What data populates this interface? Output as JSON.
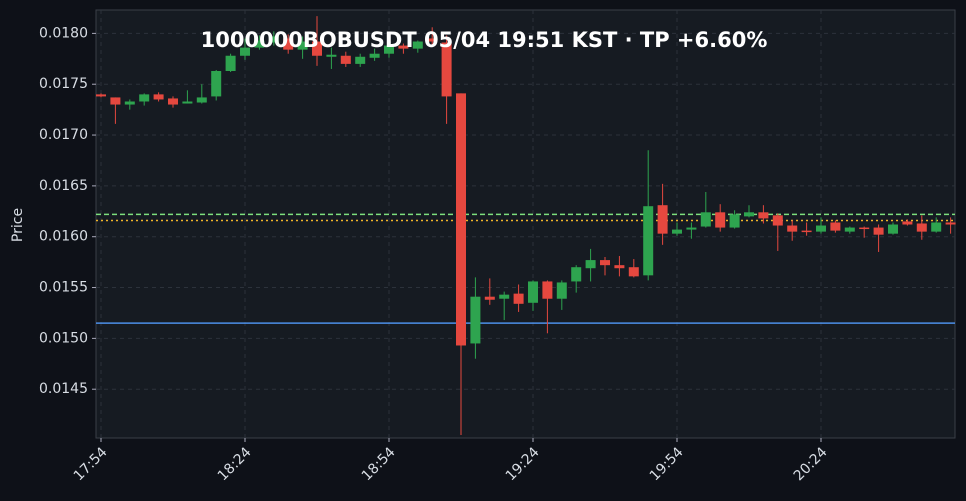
{
  "chart_data": {
    "type": "candlestick",
    "title": "1000000BOBUSDT  05/04 19:51 KST  ·  TP +6.60%",
    "y_label": "Price",
    "categories": [
      "17:54",
      null,
      null,
      null,
      null,
      null,
      null,
      null,
      null,
      null,
      "18:24",
      null,
      null,
      null,
      null,
      null,
      null,
      null,
      null,
      null,
      "18:54",
      null,
      null,
      null,
      null,
      null,
      null,
      null,
      null,
      null,
      "19:24",
      null,
      null,
      null,
      null,
      null,
      null,
      null,
      null,
      null,
      "19:54",
      null,
      null,
      null,
      null,
      null,
      null,
      null,
      null,
      null,
      "20:24",
      null,
      null,
      null,
      null,
      null,
      null,
      null,
      null,
      null
    ],
    "open": [
      0.0174,
      0.01737,
      0.0173,
      0.01733,
      0.0174,
      0.01736,
      0.01731,
      0.01732,
      0.01738,
      0.01763,
      0.01778,
      0.01786,
      0.01791,
      0.01795,
      0.01784,
      0.01792,
      0.01777,
      0.01778,
      0.0177,
      0.01776,
      0.0178,
      0.01788,
      0.01785,
      0.01795,
      0.01791,
      0.01741,
      0.01495,
      0.01541,
      0.01539,
      0.01544,
      0.01535,
      0.01556,
      0.01539,
      0.01556,
      0.01569,
      0.01577,
      0.01572,
      0.0157,
      0.01562,
      0.01631,
      0.01603,
      0.01607,
      0.0161,
      0.01624,
      0.01609,
      0.0162,
      0.01624,
      0.01621,
      0.01611,
      0.01606,
      0.01605,
      0.01614,
      0.01605,
      0.01609,
      0.01609,
      0.01603,
      0.01615,
      0.01613,
      0.01605,
      0.01614
    ],
    "high": [
      0.01741,
      0.01737,
      0.01735,
      0.01741,
      0.01742,
      0.01738,
      0.01744,
      0.0175,
      0.01764,
      0.0178,
      0.01795,
      0.01798,
      0.01802,
      0.01799,
      0.01797,
      0.01817,
      0.01786,
      0.01782,
      0.0178,
      0.01785,
      0.01794,
      0.0179,
      0.01793,
      0.01806,
      0.01798,
      0.01741,
      0.0156,
      0.01559,
      0.01546,
      0.01553,
      0.01557,
      0.01557,
      0.01557,
      0.01572,
      0.01588,
      0.0158,
      0.01581,
      0.01578,
      0.01685,
      0.01652,
      0.01614,
      0.01614,
      0.01644,
      0.01632,
      0.01626,
      0.01631,
      0.01631,
      0.01623,
      0.01616,
      0.01614,
      0.01619,
      0.01616,
      0.0161,
      0.0161,
      0.01612,
      0.01614,
      0.01617,
      0.01621,
      0.01619,
      0.01619
    ],
    "low": [
      0.01737,
      0.01711,
      0.01725,
      0.01729,
      0.01733,
      0.01727,
      0.01731,
      0.01731,
      0.01734,
      0.01762,
      0.01774,
      0.01784,
      0.01788,
      0.0178,
      0.01775,
      0.01768,
      0.01765,
      0.01767,
      0.01767,
      0.01773,
      0.01776,
      0.0178,
      0.01781,
      0.01789,
      0.01711,
      0.01405,
      0.0148,
      0.01533,
      0.01518,
      0.01526,
      0.01527,
      0.01505,
      0.01528,
      0.01545,
      0.01556,
      0.01562,
      0.01561,
      0.0156,
      0.01557,
      0.01592,
      0.01601,
      0.01598,
      0.01609,
      0.01605,
      0.01608,
      0.01619,
      0.01613,
      0.01586,
      0.01596,
      0.01601,
      0.01603,
      0.01604,
      0.01603,
      0.01599,
      0.01585,
      0.01602,
      0.01611,
      0.01597,
      0.01604,
      0.01603
    ],
    "close": [
      0.01738,
      0.0173,
      0.01733,
      0.0174,
      0.01735,
      0.0173,
      0.01733,
      0.01737,
      0.01763,
      0.01778,
      0.01786,
      0.01793,
      0.01797,
      0.01784,
      0.01792,
      0.01778,
      0.01779,
      0.0177,
      0.01777,
      0.0178,
      0.01788,
      0.01785,
      0.01792,
      0.01792,
      0.01738,
      0.01493,
      0.01541,
      0.01538,
      0.01543,
      0.01534,
      0.01556,
      0.01539,
      0.01555,
      0.0157,
      0.01577,
      0.01572,
      0.01569,
      0.01561,
      0.0163,
      0.01603,
      0.01607,
      0.01609,
      0.01624,
      0.01609,
      0.01622,
      0.01624,
      0.01618,
      0.01611,
      0.01605,
      0.01605,
      0.01611,
      0.01606,
      0.01609,
      0.01608,
      0.01602,
      0.01612,
      0.01612,
      0.01605,
      0.01614,
      0.01612
    ],
    "up_color": "#2ea44f",
    "down_color": "#e5483f",
    "hlines": [
      {
        "value": 0.01622,
        "color": "#7ee07e",
        "style": "dashed"
      },
      {
        "value": 0.01616,
        "color": "#f0b429",
        "style": "dotted"
      },
      {
        "value": 0.01515,
        "color": "#4c8fe8",
        "style": "solid"
      }
    ],
    "ylim": [
      0.01402,
      0.01823
    ],
    "yticks": [
      0.0145,
      {
        "value": 0.015,
        "label": "0.0150"
      },
      0.0155,
      {
        "value": 0.016,
        "label": "0.0160"
      },
      0.0165,
      {
        "value": 0.017,
        "label": "0.0170"
      },
      0.0175,
      {
        "value": 0.018,
        "label": "0.0180"
      }
    ],
    "grid": true
  }
}
